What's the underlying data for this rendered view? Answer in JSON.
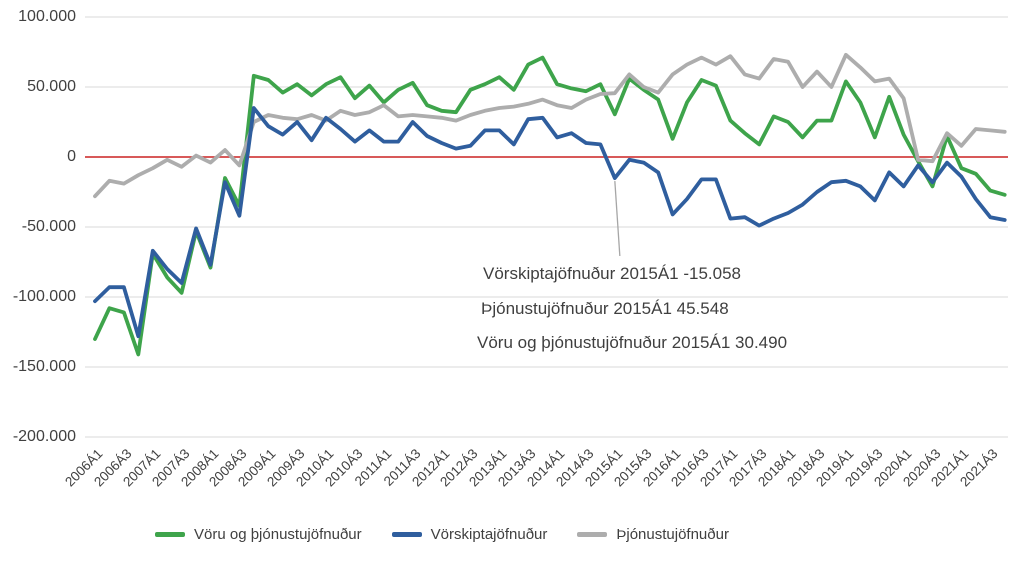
{
  "chart_data": {
    "type": "line",
    "title": "",
    "grid_color": "#D9D9D9",
    "zero_line_color": "#CC2222",
    "leader_line_color": "#A6A6A6",
    "ylim": [
      -200000,
      100000
    ],
    "y_ticks": [
      {
        "label": "100.000",
        "value": 100000
      },
      {
        "label": "50.000",
        "value": 50000
      },
      {
        "label": "0",
        "value": 0
      },
      {
        "label": "-50.000",
        "value": -50000
      },
      {
        "label": "-100.000",
        "value": -100000
      },
      {
        "label": "-150.000",
        "value": -150000
      },
      {
        "label": "-200.000",
        "value": -200000
      }
    ],
    "x_tick_labels": [
      "2006Á1",
      "2006Á3",
      "2007Á1",
      "2007Á3",
      "2008Á1",
      "2008Á3",
      "2009Á1",
      "2009Á3",
      "2010Á1",
      "2010Á3",
      "2011Á1",
      "2011Á3",
      "2012Á1",
      "2012Á3",
      "2013Á1",
      "2013Á3",
      "2014Á1",
      "2014Á3",
      "2015Á1",
      "2015Á3",
      "2016Á1",
      "2016Á3",
      "2017Á1",
      "2017Á3",
      "2018Á1",
      "2018Á3",
      "2019Á1",
      "2019Á3",
      "2020Á1",
      "2020Á3",
      "2021Á1",
      "2021Á3"
    ],
    "points_per_tick": 2,
    "n_points": 64,
    "series": [
      {
        "name": "Vöru og þjónustujöfnuður",
        "color": "#3EA44B",
        "values": [
          -130000,
          -108000,
          -111000,
          -141000,
          -69000,
          -86000,
          -97000,
          -53000,
          -79000,
          -15000,
          -35000,
          58000,
          55000,
          46000,
          52000,
          44000,
          52000,
          57000,
          42000,
          51000,
          39000,
          48000,
          53000,
          37000,
          33000,
          32000,
          48000,
          52000,
          57000,
          48000,
          66000,
          71000,
          52000,
          49000,
          47000,
          52000,
          30490,
          56000,
          48000,
          41000,
          13000,
          39000,
          55000,
          51000,
          26000,
          17000,
          9000,
          29000,
          25000,
          14000,
          26000,
          26000,
          54000,
          39000,
          14000,
          43000,
          16000,
          -3000,
          -21000,
          15000,
          -8000,
          -12000,
          -24000,
          -27000
        ]
      },
      {
        "name": "Vörskiptajöfnuður",
        "color": "#2F5E9E",
        "values": [
          -103000,
          -93000,
          -93000,
          -128000,
          -67000,
          -80000,
          -90000,
          -51000,
          -77000,
          -18000,
          -42000,
          35000,
          22000,
          16000,
          25000,
          12000,
          28000,
          20000,
          11000,
          19000,
          11000,
          11000,
          25000,
          15000,
          10000,
          6000,
          8000,
          19000,
          19000,
          9000,
          27000,
          28000,
          14000,
          17000,
          10000,
          9000,
          -15058,
          -2000,
          -4000,
          -11000,
          -41000,
          -30000,
          -16000,
          -16000,
          -44000,
          -43000,
          -49000,
          -44000,
          -40000,
          -34000,
          -25000,
          -18000,
          -17000,
          -21000,
          -31000,
          -11000,
          -21000,
          -6000,
          -18000,
          -4000,
          -14000,
          -30000,
          -43000,
          -45000
        ]
      },
      {
        "name": "Þjónustujöfnuður",
        "color": "#ADADAD",
        "values": [
          -28000,
          -17000,
          -19000,
          -13000,
          -8000,
          -2000,
          -7000,
          1000,
          -4000,
          5000,
          -6000,
          25000,
          30000,
          28000,
          27000,
          30000,
          26000,
          33000,
          30000,
          32000,
          37000,
          29000,
          30000,
          29000,
          28000,
          26000,
          30000,
          33000,
          35000,
          36000,
          38000,
          41000,
          37000,
          35000,
          41000,
          45000,
          45548,
          59000,
          50000,
          46000,
          59000,
          66000,
          71000,
          66000,
          72000,
          59000,
          56000,
          70000,
          68000,
          50000,
          61000,
          50000,
          73000,
          64000,
          54000,
          56000,
          42000,
          -2000,
          -3000,
          17000,
          8000,
          20000,
          19000,
          18000
        ]
      }
    ],
    "annotation": {
      "point_index": 36,
      "lines": [
        "Vörskiptajöfnuður 2015Á1 -15.058",
        "Þjónustujöfnuður 2015Á1 45.548",
        "Vöru og þjónustujöfnuður 2015Á1 30.490"
      ]
    }
  }
}
